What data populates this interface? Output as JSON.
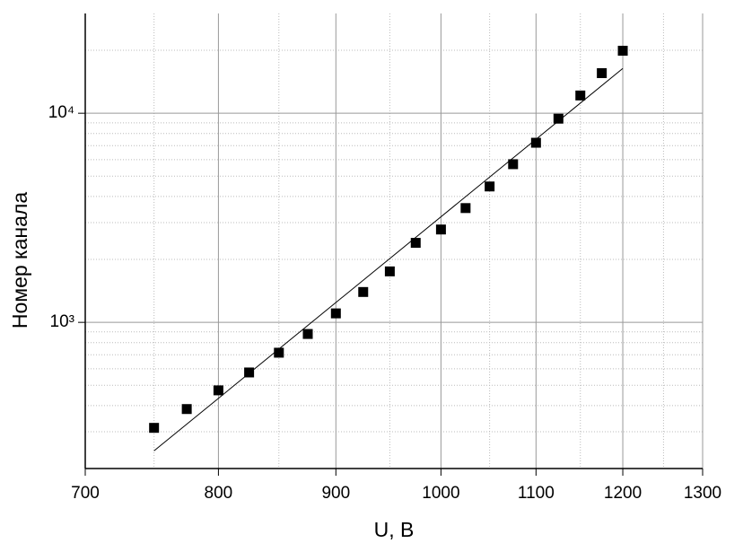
{
  "chart_data": {
    "type": "scatter",
    "x_label": "U, B",
    "y_label": "Номер канала",
    "x": [
      750,
      775,
      800,
      825,
      850,
      875,
      900,
      925,
      950,
      975,
      1000,
      1025,
      1050,
      1075,
      1100,
      1125,
      1150,
      1175,
      1200
    ],
    "series": [
      {
        "type": "scatter",
        "color": "#000000",
        "values": [
          313,
          385,
          473,
          576,
          716,
          880,
          1104,
          1397,
          1753,
          2400,
          2780,
          3520,
          4465,
          5706,
          7226,
          9420,
          12160,
          15550,
          19900
        ]
      },
      {
        "type": "line",
        "color": "#000000",
        "x": [
          750,
          1200
        ],
        "values": [
          243,
          16370
        ]
      }
    ],
    "xlim": [
      700,
      1300
    ],
    "ylim": [
      200,
      30000
    ],
    "xticks": [
      700,
      800,
      900,
      1000,
      1100,
      1200,
      1300
    ],
    "yticks": [
      {
        "value": 1000,
        "label": "10³"
      },
      {
        "value": 10000,
        "label": "10⁴"
      }
    ],
    "xminorticks": [
      750,
      850,
      950,
      1050,
      1150,
      1250
    ],
    "yminorticks": [
      300,
      400,
      500,
      600,
      700,
      800,
      900,
      2000,
      3000,
      4000,
      5000,
      6000,
      7000,
      8000,
      9000,
      20000
    ],
    "xlog": true,
    "ylog": true,
    "grid": true
  }
}
